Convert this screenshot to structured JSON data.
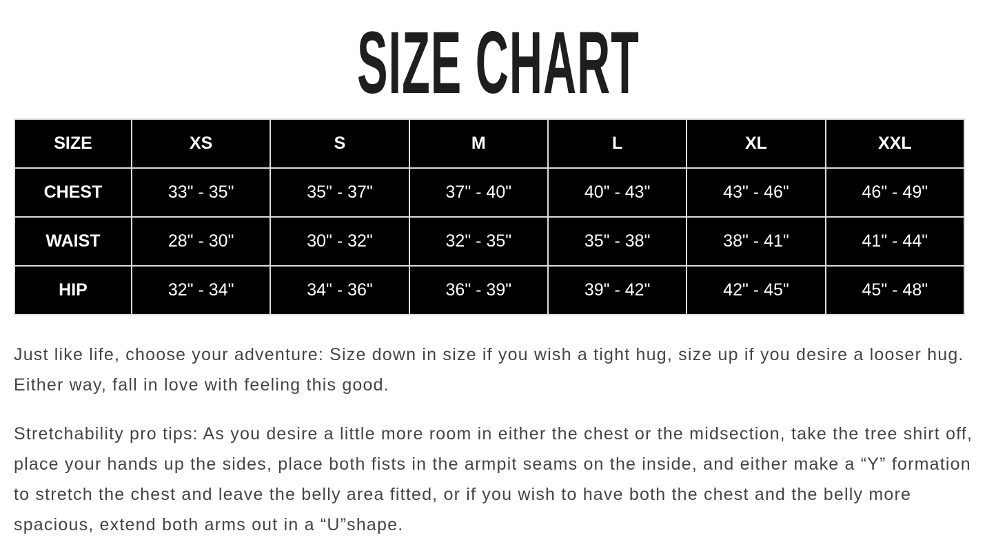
{
  "title": "SIZE CHART",
  "table": {
    "header": [
      "SIZE",
      "XS",
      "S",
      "M",
      "L",
      "XL",
      "XXL"
    ],
    "rows": [
      {
        "label": "CHEST",
        "values": [
          "33\" - 35\"",
          "35\" - 37\"",
          "37\" - 40\"",
          "40\" - 43\"",
          "43\" - 46\"",
          "46\" - 49\""
        ]
      },
      {
        "label": "WAIST",
        "values": [
          "28\" - 30\"",
          "30\" - 32\"",
          "32\" - 35\"",
          "35\" - 38\"",
          "38\" - 41\"",
          "41\" - 44\""
        ]
      },
      {
        "label": "HIP",
        "values": [
          "32\" - 34\"",
          "34\" - 36\"",
          "36\" - 39\"",
          "39\" - 42\"",
          "42\" - 45\"",
          "45\" - 48\""
        ]
      }
    ]
  },
  "paragraphs": [
    "Just like life, choose your adventure: Size down in size if you wish a tight hug, size up if you desire a looser hug. Either way, fall in love with feeling this good.",
    "Stretchability pro tips: As you desire a little more room in either the chest or the midsection, take the tree shirt off, place your hands up the sides, place both fists in the armpit seams on the inside, and either make a “Y” formation to stretch the chest and leave the belly area fitted, or if you wish to have both the chest and the belly more spacious, extend both arms out in a “U”shape."
  ]
}
